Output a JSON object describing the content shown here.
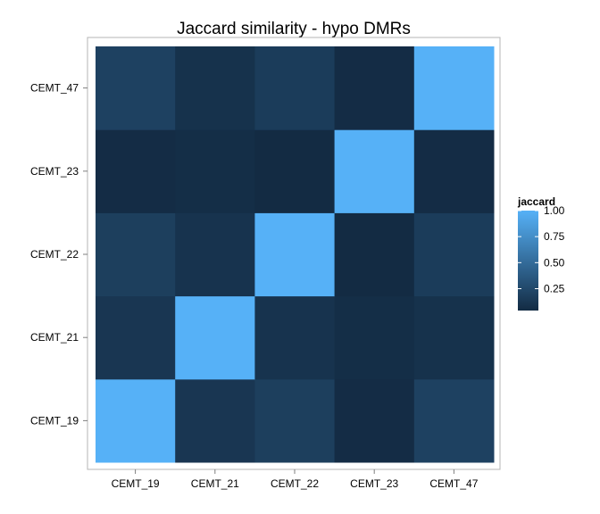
{
  "chart_data": {
    "type": "heatmap",
    "title": "Jaccard similarity - hypo DMRs",
    "x_categories": [
      "CEMT_19",
      "CEMT_21",
      "CEMT_22",
      "CEMT_23",
      "CEMT_47"
    ],
    "y_categories": [
      "CEMT_19",
      "CEMT_21",
      "CEMT_22",
      "CEMT_23",
      "CEMT_47"
    ],
    "values": [
      [
        1.0,
        0.12,
        0.18,
        0.05,
        0.2
      ],
      [
        0.12,
        1.0,
        0.1,
        0.06,
        0.09
      ],
      [
        0.18,
        0.1,
        1.0,
        0.04,
        0.16
      ],
      [
        0.05,
        0.06,
        0.04,
        1.0,
        0.05
      ],
      [
        0.2,
        0.09,
        0.16,
        0.05,
        1.0
      ]
    ],
    "legend": {
      "title": "jaccard",
      "ticks": [
        "1.00",
        "0.75",
        "0.50",
        "0.25"
      ],
      "tick_values": [
        1.0,
        0.75,
        0.5,
        0.25
      ],
      "range": [
        0.04,
        1.0
      ],
      "placement": "right"
    },
    "colors": {
      "low": "#132B43",
      "high": "#56B1F7"
    }
  }
}
